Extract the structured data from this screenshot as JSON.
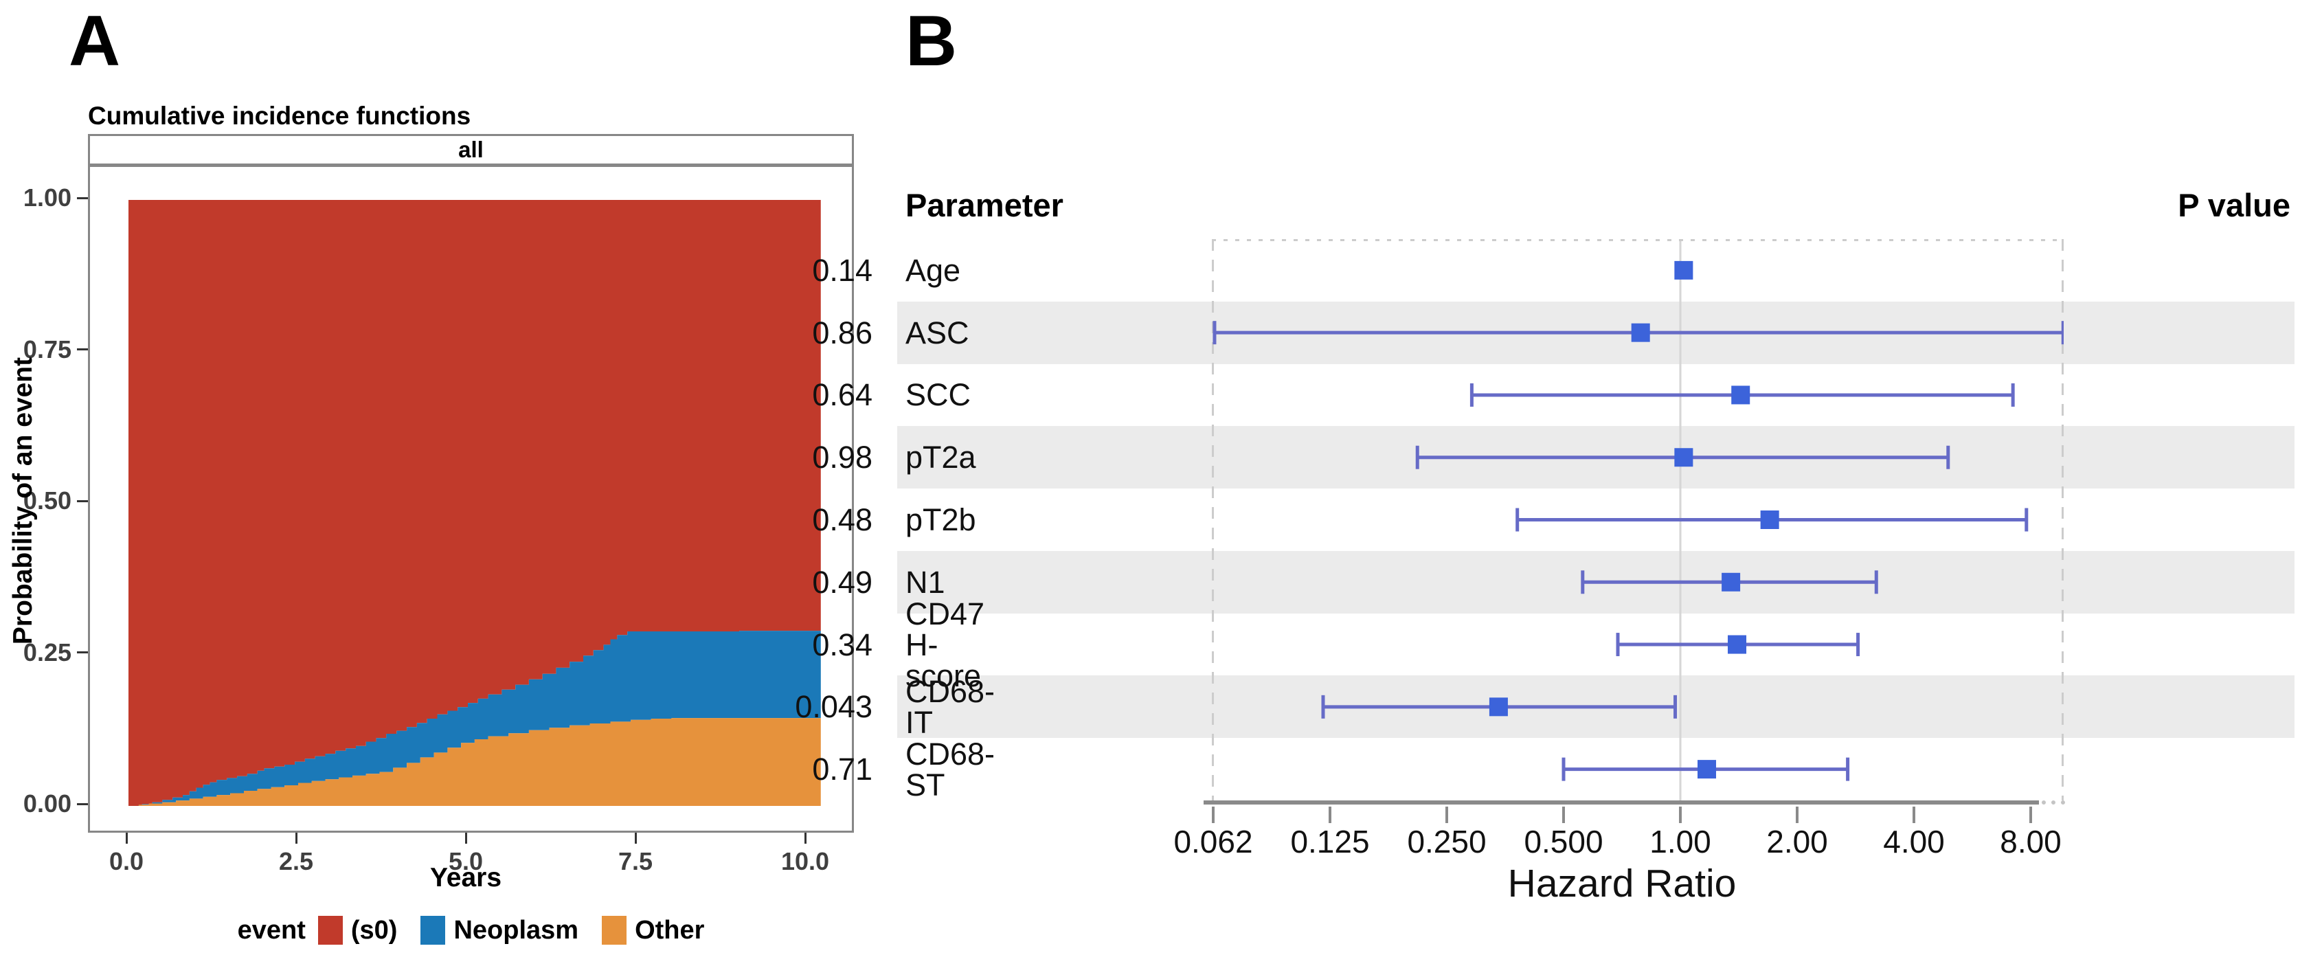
{
  "panel_a": {
    "panel_label": "A",
    "title": "Cumulative incidence functions",
    "facet_label": "all",
    "y_axis": {
      "label": "Probability of an event",
      "ticks": [
        {
          "label": "1.00",
          "value": 1.0
        },
        {
          "label": "0.75",
          "value": 0.75
        },
        {
          "label": "0.50",
          "value": 0.5
        },
        {
          "label": "0.25",
          "value": 0.25
        },
        {
          "label": "0.00",
          "value": 0.0
        }
      ]
    },
    "x_axis": {
      "label": "Years",
      "ticks": [
        {
          "label": "0.0",
          "value": 0.0
        },
        {
          "label": "2.5",
          "value": 2.5
        },
        {
          "label": "5.0",
          "value": 5.0
        },
        {
          "label": "7.5",
          "value": 7.5
        },
        {
          "label": "10.0",
          "value": 10.0
        }
      ]
    },
    "legend": {
      "title": "event",
      "items": [
        {
          "label": "(s0)",
          "color": "#c13a2b"
        },
        {
          "label": "Neoplasm",
          "color": "#1b79b8"
        },
        {
          "label": "Other",
          "color": "#e6923c"
        }
      ]
    }
  },
  "panel_b": {
    "panel_label": "B",
    "column_headers": {
      "parameter": "Parameter",
      "p_value": "P value"
    },
    "colors": {
      "marker": "#3c63da",
      "error_bar": "#666bc7",
      "shaded_band": "#ebebeb",
      "reference_line": "#d6d6d6",
      "panel_border": "#cccccc",
      "axis_line": "#8a8a8a"
    }
  },
  "chart_data": [
    {
      "type": "area",
      "subtype": "stacked-step-cumulative-incidence",
      "title": "Cumulative incidence functions",
      "facet": "all",
      "xlabel": "Years",
      "ylabel": "Probability of an event",
      "xlim": [
        0,
        10.2
      ],
      "ylim": [
        0,
        1
      ],
      "x_ticks": [
        0,
        2.5,
        5,
        7.5,
        10
      ],
      "y_ticks": [
        0,
        0.25,
        0.5,
        0.75,
        1
      ],
      "grid": false,
      "legend_position": "bottom",
      "series": [
        {
          "name": "Other",
          "color": "#e6923c",
          "role": "bottom-layer-cumulative-incidence",
          "step_points": [
            [
              0,
              0
            ],
            [
              0.15,
              0.002
            ],
            [
              0.3,
              0.004
            ],
            [
              0.5,
              0.006
            ],
            [
              0.7,
              0.009
            ],
            [
              0.9,
              0.012
            ],
            [
              1.1,
              0.015
            ],
            [
              1.3,
              0.018
            ],
            [
              1.5,
              0.021
            ],
            [
              1.7,
              0.025
            ],
            [
              1.9,
              0.028
            ],
            [
              2.1,
              0.031
            ],
            [
              2.3,
              0.034
            ],
            [
              2.5,
              0.038
            ],
            [
              2.7,
              0.041
            ],
            [
              2.9,
              0.044
            ],
            [
              3.1,
              0.047
            ],
            [
              3.3,
              0.05
            ],
            [
              3.5,
              0.053
            ],
            [
              3.7,
              0.056
            ],
            [
              3.9,
              0.063
            ],
            [
              4.1,
              0.071
            ],
            [
              4.3,
              0.08
            ],
            [
              4.5,
              0.088
            ],
            [
              4.7,
              0.096
            ],
            [
              4.9,
              0.104
            ],
            [
              5.1,
              0.11
            ],
            [
              5.3,
              0.115
            ],
            [
              5.6,
              0.12
            ],
            [
              5.9,
              0.125
            ],
            [
              6.2,
              0.129
            ],
            [
              6.5,
              0.133
            ],
            [
              6.8,
              0.136
            ],
            [
              7.1,
              0.139
            ],
            [
              7.4,
              0.142
            ],
            [
              7.7,
              0.144
            ],
            [
              8.0,
              0.145
            ]
          ]
        },
        {
          "name": "Neoplasm",
          "color": "#1b79b8",
          "role": "middle-layer",
          "cumulative_top_step_points": [
            [
              0,
              0
            ],
            [
              0.2,
              0.003
            ],
            [
              0.35,
              0.006
            ],
            [
              0.5,
              0.01
            ],
            [
              0.65,
              0.014
            ],
            [
              0.8,
              0.018
            ],
            [
              0.9,
              0.024
            ],
            [
              1.0,
              0.03
            ],
            [
              1.1,
              0.035
            ],
            [
              1.2,
              0.039
            ],
            [
              1.3,
              0.043
            ],
            [
              1.45,
              0.046
            ],
            [
              1.6,
              0.049
            ],
            [
              1.75,
              0.053
            ],
            [
              1.9,
              0.058
            ],
            [
              2.0,
              0.062
            ],
            [
              2.15,
              0.065
            ],
            [
              2.3,
              0.068
            ],
            [
              2.45,
              0.073
            ],
            [
              2.6,
              0.078
            ],
            [
              2.75,
              0.082
            ],
            [
              2.9,
              0.086
            ],
            [
              3.05,
              0.091
            ],
            [
              3.2,
              0.095
            ],
            [
              3.35,
              0.099
            ],
            [
              3.5,
              0.106
            ],
            [
              3.65,
              0.112
            ],
            [
              3.8,
              0.119
            ],
            [
              3.95,
              0.124
            ],
            [
              4.1,
              0.13
            ],
            [
              4.25,
              0.137
            ],
            [
              4.4,
              0.144
            ],
            [
              4.55,
              0.151
            ],
            [
              4.7,
              0.157
            ],
            [
              4.85,
              0.163
            ],
            [
              5.0,
              0.17
            ],
            [
              5.15,
              0.177
            ],
            [
              5.3,
              0.184
            ],
            [
              5.5,
              0.192
            ],
            [
              5.7,
              0.2
            ],
            [
              5.9,
              0.209
            ],
            [
              6.1,
              0.218
            ],
            [
              6.3,
              0.228
            ],
            [
              6.5,
              0.238
            ],
            [
              6.7,
              0.248
            ],
            [
              6.85,
              0.257
            ],
            [
              7.0,
              0.266
            ],
            [
              7.1,
              0.275
            ],
            [
              7.2,
              0.282
            ],
            [
              7.35,
              0.288
            ],
            [
              9.0,
              0.289
            ]
          ]
        },
        {
          "name": "(s0)",
          "color": "#c13a2b",
          "role": "remainder-to-probability-1"
        }
      ]
    },
    {
      "type": "forest",
      "xlabel": "Hazard Ratio",
      "x_scale": "log2",
      "x_ticks": [
        0.0625,
        0.125,
        0.25,
        0.5,
        1,
        2,
        4,
        8
      ],
      "x_tick_labels": [
        "0.062",
        "0.125",
        "0.250",
        "0.500",
        "1.00",
        "2.00",
        "4.00",
        "8.00"
      ],
      "reference_line": 1.0,
      "rows": [
        {
          "parameter": "Age",
          "hr": 1.02,
          "ci_low": null,
          "ci_high": null,
          "p_value": "0.14",
          "shaded": false
        },
        {
          "parameter": "ASC",
          "hr": 0.79,
          "ci_low": 0.063,
          "ci_high": 9.7,
          "p_value": "0.86",
          "shaded": true
        },
        {
          "parameter": "SCC",
          "hr": 1.43,
          "ci_low": 0.29,
          "ci_high": 7.2,
          "p_value": "0.64",
          "shaded": false
        },
        {
          "parameter": "pT2a",
          "hr": 1.02,
          "ci_low": 0.21,
          "ci_high": 4.9,
          "p_value": "0.98",
          "shaded": true
        },
        {
          "parameter": "pT2b",
          "hr": 1.7,
          "ci_low": 0.38,
          "ci_high": 7.8,
          "p_value": "0.48",
          "shaded": false
        },
        {
          "parameter": "N1",
          "hr": 1.35,
          "ci_low": 0.56,
          "ci_high": 3.2,
          "p_value": "0.49",
          "shaded": true
        },
        {
          "parameter": "CD47 H-score",
          "hr": 1.4,
          "ci_low": 0.69,
          "ci_high": 2.87,
          "p_value": "0.34",
          "shaded": false
        },
        {
          "parameter": "CD68-IT",
          "hr": 0.34,
          "ci_low": 0.12,
          "ci_high": 0.97,
          "p_value": "0.043",
          "shaded": true
        },
        {
          "parameter": "CD68-ST",
          "hr": 1.17,
          "ci_low": 0.5,
          "ci_high": 2.7,
          "p_value": "0.71",
          "shaded": false
        }
      ]
    }
  ]
}
